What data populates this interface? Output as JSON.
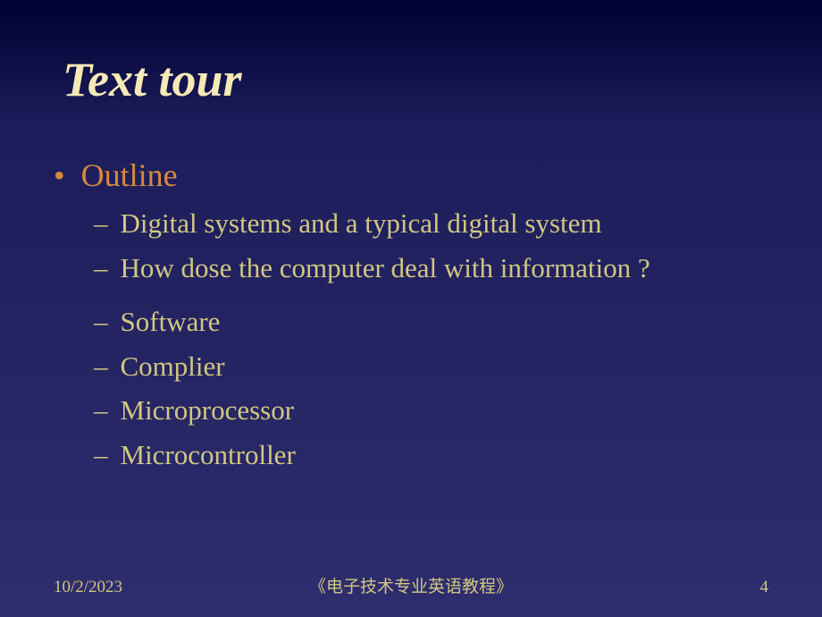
{
  "title": "Text tour",
  "outline": {
    "heading": "Outline",
    "group1": [
      "Digital systems and a typical digital system",
      "How dose the computer deal with information ?"
    ],
    "group2": [
      "Software",
      "Complier",
      "Microprocessor",
      "Microcontroller"
    ]
  },
  "footer": {
    "date": "10/2/2023",
    "center": "《电子技术专业英语教程》",
    "page": "4"
  },
  "colors": {
    "title": "#f5e9b5",
    "heading": "#d78a3c",
    "subitem": "#d2c780",
    "bg_top": "#000033",
    "bg_bottom": "#2e2e6e"
  },
  "fonts": {
    "title_size": 54,
    "heading_size": 36,
    "subitem_size": 31,
    "footer_size": 19
  }
}
